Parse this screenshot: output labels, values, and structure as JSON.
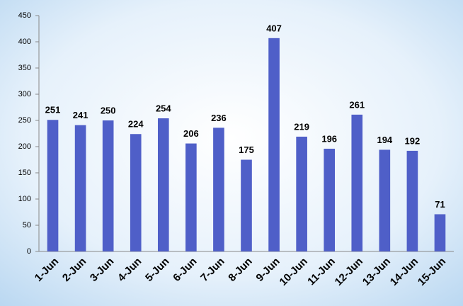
{
  "chart_data": {
    "type": "bar",
    "categories": [
      "1-Jun",
      "2-Jun",
      "3-Jun",
      "4-Jun",
      "5-Jun",
      "6-Jun",
      "7-Jun",
      "8-Jun",
      "9-Jun",
      "10-Jun",
      "11-Jun",
      "12-Jun",
      "13-Jun",
      "14-Jun",
      "15-Jun"
    ],
    "values": [
      251,
      241,
      250,
      224,
      254,
      206,
      236,
      175,
      407,
      219,
      196,
      261,
      194,
      192,
      71
    ],
    "color": "#4f5fc8",
    "ylim": [
      0,
      450
    ],
    "yticks": [
      0,
      50,
      100,
      150,
      200,
      250,
      300,
      350,
      400,
      450
    ],
    "grid": false
  }
}
